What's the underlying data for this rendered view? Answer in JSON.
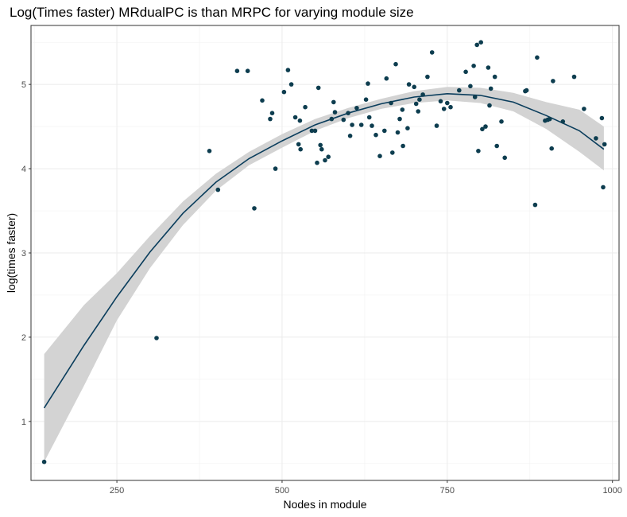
{
  "chart_data": {
    "type": "scatter",
    "title": "Log(Times faster) MRdualPC is than MRPC for varying module size",
    "xlabel": "Nodes in module",
    "ylabel": "log(times faster)",
    "xlim": [
      120,
      1010
    ],
    "ylim": [
      0.3,
      5.7
    ],
    "x_ticks": [
      250,
      500,
      750,
      1000
    ],
    "y_ticks": [
      1,
      2,
      3,
      4,
      5
    ],
    "grid": true,
    "theme": "bw",
    "point_color": "#0d3d4f",
    "trend_color": "#0a3d5c",
    "band_color": "#d3d3d3",
    "points": [
      {
        "x": 140,
        "y": 0.52
      },
      {
        "x": 310,
        "y": 1.99
      },
      {
        "x": 390,
        "y": 4.21
      },
      {
        "x": 403,
        "y": 3.75
      },
      {
        "x": 432,
        "y": 5.16
      },
      {
        "x": 448,
        "y": 5.16
      },
      {
        "x": 458,
        "y": 3.53
      },
      {
        "x": 470,
        "y": 4.81
      },
      {
        "x": 482,
        "y": 4.59
      },
      {
        "x": 485,
        "y": 4.66
      },
      {
        "x": 490,
        "y": 4.0
      },
      {
        "x": 503,
        "y": 4.91
      },
      {
        "x": 509,
        "y": 5.17
      },
      {
        "x": 514,
        "y": 5.0
      },
      {
        "x": 520,
        "y": 4.61
      },
      {
        "x": 525,
        "y": 4.29
      },
      {
        "x": 527,
        "y": 4.57
      },
      {
        "x": 528,
        "y": 4.23
      },
      {
        "x": 535,
        "y": 4.73
      },
      {
        "x": 545,
        "y": 4.45
      },
      {
        "x": 550,
        "y": 4.45
      },
      {
        "x": 553,
        "y": 4.07
      },
      {
        "x": 555,
        "y": 4.96
      },
      {
        "x": 558,
        "y": 4.28
      },
      {
        "x": 560,
        "y": 4.23
      },
      {
        "x": 565,
        "y": 4.1
      },
      {
        "x": 570,
        "y": 4.14
      },
      {
        "x": 575,
        "y": 4.59
      },
      {
        "x": 578,
        "y": 4.79
      },
      {
        "x": 580,
        "y": 4.67
      },
      {
        "x": 593,
        "y": 4.58
      },
      {
        "x": 600,
        "y": 4.66
      },
      {
        "x": 603,
        "y": 4.39
      },
      {
        "x": 606,
        "y": 4.52
      },
      {
        "x": 613,
        "y": 4.72
      },
      {
        "x": 620,
        "y": 4.52
      },
      {
        "x": 627,
        "y": 4.82
      },
      {
        "x": 630,
        "y": 5.01
      },
      {
        "x": 632,
        "y": 4.61
      },
      {
        "x": 636,
        "y": 4.51
      },
      {
        "x": 642,
        "y": 4.4
      },
      {
        "x": 648,
        "y": 4.15
      },
      {
        "x": 655,
        "y": 4.45
      },
      {
        "x": 658,
        "y": 5.07
      },
      {
        "x": 665,
        "y": 4.78
      },
      {
        "x": 667,
        "y": 4.19
      },
      {
        "x": 672,
        "y": 5.24
      },
      {
        "x": 675,
        "y": 4.43
      },
      {
        "x": 678,
        "y": 4.59
      },
      {
        "x": 682,
        "y": 4.7
      },
      {
        "x": 683,
        "y": 4.27
      },
      {
        "x": 690,
        "y": 4.48
      },
      {
        "x": 692,
        "y": 5.0
      },
      {
        "x": 700,
        "y": 4.97
      },
      {
        "x": 703,
        "y": 4.77
      },
      {
        "x": 706,
        "y": 4.68
      },
      {
        "x": 708,
        "y": 4.82
      },
      {
        "x": 713,
        "y": 4.88
      },
      {
        "x": 720,
        "y": 5.09
      },
      {
        "x": 727,
        "y": 5.38
      },
      {
        "x": 734,
        "y": 4.51
      },
      {
        "x": 740,
        "y": 4.8
      },
      {
        "x": 745,
        "y": 4.71
      },
      {
        "x": 750,
        "y": 4.78
      },
      {
        "x": 755,
        "y": 4.73
      },
      {
        "x": 768,
        "y": 4.93
      },
      {
        "x": 778,
        "y": 5.15
      },
      {
        "x": 785,
        "y": 4.98
      },
      {
        "x": 790,
        "y": 5.22
      },
      {
        "x": 792,
        "y": 4.85
      },
      {
        "x": 795,
        "y": 5.47
      },
      {
        "x": 797,
        "y": 4.21
      },
      {
        "x": 801,
        "y": 5.5
      },
      {
        "x": 803,
        "y": 4.47
      },
      {
        "x": 808,
        "y": 4.5
      },
      {
        "x": 812,
        "y": 5.2
      },
      {
        "x": 814,
        "y": 4.75
      },
      {
        "x": 816,
        "y": 4.95
      },
      {
        "x": 822,
        "y": 5.09
      },
      {
        "x": 825,
        "y": 4.27
      },
      {
        "x": 832,
        "y": 4.56
      },
      {
        "x": 837,
        "y": 4.13
      },
      {
        "x": 868,
        "y": 4.92
      },
      {
        "x": 870,
        "y": 4.93
      },
      {
        "x": 883,
        "y": 3.57
      },
      {
        "x": 886,
        "y": 5.32
      },
      {
        "x": 898,
        "y": 4.57
      },
      {
        "x": 902,
        "y": 4.58
      },
      {
        "x": 905,
        "y": 4.59
      },
      {
        "x": 908,
        "y": 4.24
      },
      {
        "x": 910,
        "y": 5.04
      },
      {
        "x": 925,
        "y": 4.56
      },
      {
        "x": 942,
        "y": 5.09
      },
      {
        "x": 957,
        "y": 4.71
      },
      {
        "x": 975,
        "y": 4.36
      },
      {
        "x": 984,
        "y": 4.6
      },
      {
        "x": 986,
        "y": 3.78
      },
      {
        "x": 988,
        "y": 4.29
      }
    ],
    "trend": {
      "x": [
        140,
        200,
        250,
        300,
        350,
        400,
        450,
        500,
        550,
        600,
        650,
        700,
        750,
        800,
        850,
        900,
        950,
        987
      ],
      "y": [
        1.16,
        1.9,
        2.48,
        3.01,
        3.47,
        3.84,
        4.12,
        4.33,
        4.52,
        4.66,
        4.77,
        4.85,
        4.89,
        4.87,
        4.79,
        4.63,
        4.45,
        4.23
      ],
      "lower": [
        0.52,
        1.42,
        2.2,
        2.82,
        3.33,
        3.74,
        4.04,
        4.25,
        4.45,
        4.6,
        4.71,
        4.78,
        4.81,
        4.78,
        4.68,
        4.47,
        4.2,
        3.98
      ],
      "upper": [
        1.8,
        2.38,
        2.76,
        3.2,
        3.61,
        3.94,
        4.2,
        4.41,
        4.59,
        4.72,
        4.83,
        4.92,
        4.97,
        4.96,
        4.9,
        4.79,
        4.7,
        4.5
      ]
    }
  }
}
